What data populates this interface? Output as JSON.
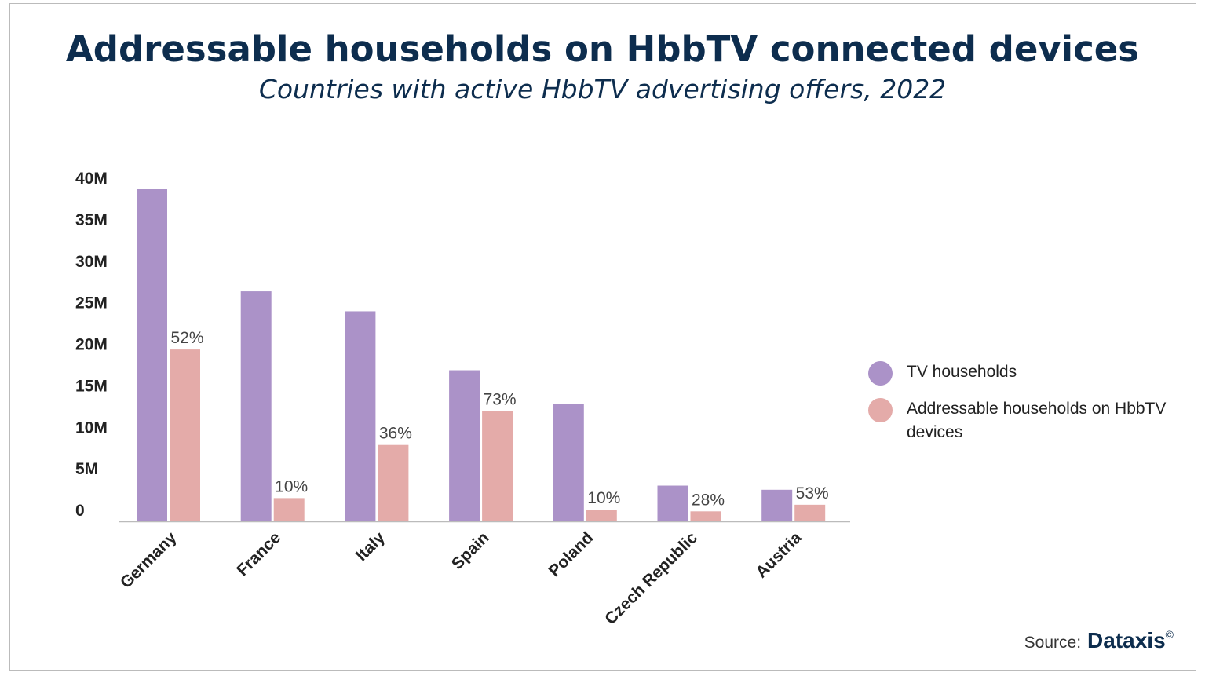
{
  "chart_data": {
    "type": "bar",
    "title": "Addressable households on HbbTV connected devices",
    "subtitle": "Countries with active HbbTV advertising offers, 2022",
    "categories": [
      "Germany",
      "France",
      "Italy",
      "Spain",
      "Poland",
      "Czech Republic",
      "Austria"
    ],
    "series": [
      {
        "name": "TV households",
        "color": "#ab92c8",
        "values": [
          40.0,
          27.7,
          25.3,
          18.2,
          14.1,
          4.3,
          3.8
        ]
      },
      {
        "name": "Addressable households on HbbTV devices",
        "color": "#e4aba9",
        "values": [
          20.7,
          2.8,
          9.2,
          13.3,
          1.4,
          1.2,
          2.0
        ],
        "labels": [
          "52%",
          "10%",
          "36%",
          "73%",
          "10%",
          "28%",
          "53%"
        ]
      }
    ],
    "yticks": [
      "0",
      "5M",
      "10M",
      "15M",
      "20M",
      "25M",
      "30M",
      "35M",
      "40M"
    ],
    "ytick_values": [
      0,
      5,
      10,
      15,
      20,
      25,
      30,
      35,
      40
    ],
    "ylim": [
      0,
      40
    ],
    "unit": "millions",
    "grid": false,
    "legend": "right"
  },
  "source": {
    "label": "Source:",
    "brand": "Dataxis",
    "copyright": "©"
  }
}
